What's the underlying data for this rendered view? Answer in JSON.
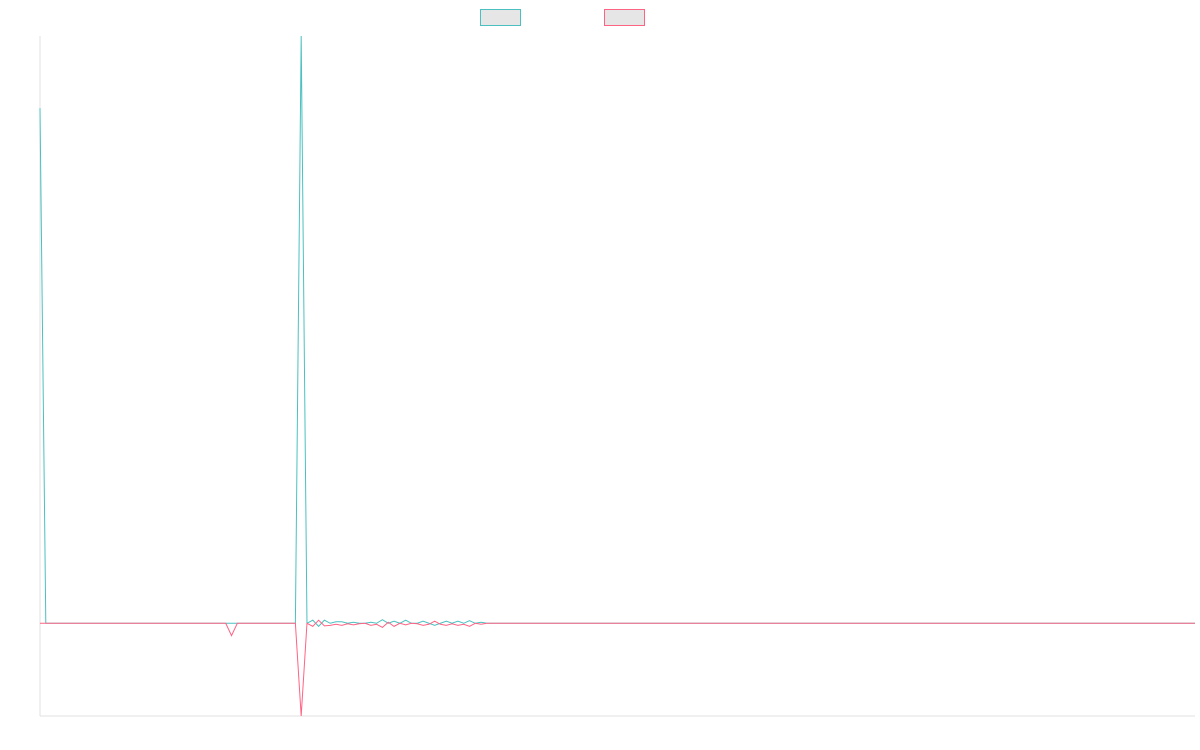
{
  "chart_data": {
    "type": "line",
    "title": "",
    "xlabel": "",
    "ylabel": "",
    "grid": false,
    "legend_position": "top-center",
    "x_count": 200,
    "ylim": [
      -0.18,
      1.14
    ],
    "series": [
      {
        "name": "",
        "color": "#4bc0c0",
        "fill": "#e6e6e6",
        "points": [
          [
            0,
            1.0
          ],
          [
            1,
            0.0
          ],
          [
            44,
            0.0
          ],
          [
            45,
            1.14
          ],
          [
            46,
            0.0
          ],
          [
            47,
            0.006
          ],
          [
            48,
            -0.006
          ],
          [
            49,
            0.006
          ],
          [
            50,
            0.0
          ],
          [
            51,
            0.003
          ],
          [
            52,
            0.003
          ],
          [
            53,
            0.0
          ],
          [
            54,
            0.002
          ],
          [
            55,
            0.0
          ],
          [
            56,
            0.0
          ],
          [
            57,
            0.002
          ],
          [
            58,
            0.0
          ],
          [
            59,
            0.007
          ],
          [
            60,
            0.0
          ],
          [
            61,
            0.004
          ],
          [
            62,
            0.0
          ],
          [
            63,
            0.006
          ],
          [
            64,
            0.0
          ],
          [
            65,
            0.0
          ],
          [
            66,
            0.004
          ],
          [
            67,
            0.0
          ],
          [
            68,
            -0.004
          ],
          [
            69,
            0.0
          ],
          [
            70,
            0.004
          ],
          [
            71,
            0.0
          ],
          [
            72,
            0.004
          ],
          [
            73,
            0.0
          ],
          [
            74,
            0.005
          ],
          [
            75,
            0.0
          ],
          [
            76,
            0.002
          ],
          [
            77,
            0.0
          ],
          [
            199,
            0.0
          ]
        ]
      },
      {
        "name": "",
        "color": "#ff6384",
        "fill": "#e6e6e6",
        "points": [
          [
            0,
            0.0
          ],
          [
            32,
            0.0
          ],
          [
            33,
            -0.024
          ],
          [
            34,
            0.0
          ],
          [
            44,
            0.0
          ],
          [
            45,
            -0.18
          ],
          [
            46,
            0.0
          ],
          [
            47,
            -0.006
          ],
          [
            48,
            0.006
          ],
          [
            49,
            -0.005
          ],
          [
            50,
            -0.004
          ],
          [
            51,
            -0.002
          ],
          [
            52,
            -0.004
          ],
          [
            53,
            -0.001
          ],
          [
            54,
            -0.003
          ],
          [
            55,
            -0.001
          ],
          [
            56,
            0.0
          ],
          [
            57,
            -0.004
          ],
          [
            58,
            -0.002
          ],
          [
            59,
            -0.008
          ],
          [
            60,
            0.002
          ],
          [
            61,
            -0.006
          ],
          [
            62,
            0.0
          ],
          [
            63,
            -0.003
          ],
          [
            64,
            0.0
          ],
          [
            65,
            -0.001
          ],
          [
            66,
            -0.004
          ],
          [
            67,
            -0.002
          ],
          [
            68,
            0.004
          ],
          [
            69,
            -0.002
          ],
          [
            70,
            -0.004
          ],
          [
            71,
            -0.001
          ],
          [
            72,
            -0.004
          ],
          [
            73,
            -0.002
          ],
          [
            74,
            -0.006
          ],
          [
            75,
            0.0
          ],
          [
            76,
            -0.002
          ],
          [
            77,
            0.0
          ],
          [
            199,
            0.0
          ]
        ]
      }
    ]
  }
}
